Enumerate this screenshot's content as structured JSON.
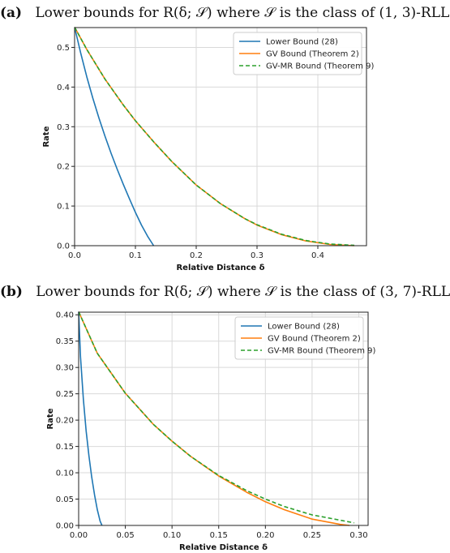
{
  "figure": {
    "panels": [
      {
        "label": "(a)",
        "caption": "Lower bounds for R(δ; 𝒮) where 𝒮 is the class of (1, 3)-RLL"
      },
      {
        "label": "(b)",
        "caption": "Lower bounds for R(δ; 𝒮) where 𝒮 is the class of (3, 7)-RLL"
      }
    ]
  },
  "chart_data": [
    {
      "type": "line",
      "xlabel": "Relative Distance δ",
      "ylabel": "Rate",
      "xlim": [
        0,
        0.48
      ],
      "ylim": [
        0,
        0.55
      ],
      "xticks": [
        "0.0",
        "0.1",
        "0.2",
        "0.3",
        "0.4"
      ],
      "xtick_values": [
        0,
        0.1,
        0.2,
        0.3,
        0.4
      ],
      "yticks": [
        "0.0",
        "0.1",
        "0.2",
        "0.3",
        "0.4",
        "0.5"
      ],
      "ytick_values": [
        0,
        0.1,
        0.2,
        0.3,
        0.4,
        0.5
      ],
      "grid": true,
      "legend_position": "top-right",
      "series": [
        {
          "name": "Lower Bound (28)",
          "color": "#1f77b4",
          "style": "solid",
          "x": [
            0,
            0.01,
            0.02,
            0.03,
            0.04,
            0.05,
            0.06,
            0.07,
            0.08,
            0.09,
            0.1,
            0.11,
            0.12,
            0.13
          ],
          "y": [
            0.551,
            0.486,
            0.426,
            0.372,
            0.322,
            0.276,
            0.233,
            0.193,
            0.155,
            0.119,
            0.084,
            0.052,
            0.024,
            0.0
          ]
        },
        {
          "name": "GV Bound (Theorem 2)",
          "color": "#ff7f0e",
          "style": "solid",
          "x": [
            0,
            0.02,
            0.05,
            0.08,
            0.1,
            0.13,
            0.16,
            0.2,
            0.24,
            0.28,
            0.3,
            0.34,
            0.38,
            0.42,
            0.46
          ],
          "y": [
            0.551,
            0.495,
            0.42,
            0.355,
            0.315,
            0.262,
            0.212,
            0.153,
            0.106,
            0.068,
            0.052,
            0.028,
            0.012,
            0.003,
            0.0
          ]
        },
        {
          "name": "GV-MR Bound (Theorem 9)",
          "color": "#2ca02c",
          "style": "dashed",
          "x": [
            0,
            0.02,
            0.05,
            0.08,
            0.1,
            0.13,
            0.16,
            0.2,
            0.24,
            0.28,
            0.3,
            0.34,
            0.38,
            0.42,
            0.46
          ],
          "y": [
            0.551,
            0.495,
            0.42,
            0.355,
            0.315,
            0.262,
            0.212,
            0.153,
            0.106,
            0.068,
            0.053,
            0.029,
            0.013,
            0.004,
            0.001
          ]
        }
      ]
    },
    {
      "type": "line",
      "xlabel": "Relative Distance δ",
      "ylabel": "Rate",
      "xlim": [
        0,
        0.31
      ],
      "ylim": [
        0,
        0.405
      ],
      "xticks": [
        "0.00",
        "0.05",
        "0.10",
        "0.15",
        "0.20",
        "0.25",
        "0.30"
      ],
      "xtick_values": [
        0,
        0.05,
        0.1,
        0.15,
        0.2,
        0.25,
        0.3
      ],
      "yticks": [
        "0.00",
        "0.05",
        "0.10",
        "0.15",
        "0.20",
        "0.25",
        "0.30",
        "0.35",
        "0.40"
      ],
      "ytick_values": [
        0,
        0.05,
        0.1,
        0.15,
        0.2,
        0.25,
        0.3,
        0.35,
        0.4
      ],
      "grid": true,
      "legend_position": "top-right",
      "series": [
        {
          "name": "Lower Bound (28)",
          "color": "#1f77b4",
          "style": "solid",
          "x": [
            0,
            0.002,
            0.005,
            0.008,
            0.011,
            0.014,
            0.017,
            0.02,
            0.023,
            0.025
          ],
          "y": [
            0.406,
            0.32,
            0.24,
            0.18,
            0.132,
            0.092,
            0.058,
            0.03,
            0.008,
            0.0
          ]
        },
        {
          "name": "GV Bound (Theorem 2)",
          "color": "#ff7f0e",
          "style": "solid",
          "x": [
            0,
            0.02,
            0.05,
            0.08,
            0.1,
            0.12,
            0.15,
            0.18,
            0.2,
            0.22,
            0.25,
            0.28,
            0.29
          ],
          "y": [
            0.406,
            0.327,
            0.251,
            0.192,
            0.16,
            0.131,
            0.094,
            0.063,
            0.045,
            0.03,
            0.012,
            0.002,
            0.0
          ]
        },
        {
          "name": "GV-MR Bound (Theorem 9)",
          "color": "#2ca02c",
          "style": "dashed",
          "x": [
            0,
            0.02,
            0.05,
            0.08,
            0.1,
            0.12,
            0.15,
            0.18,
            0.2,
            0.22,
            0.25,
            0.28,
            0.295
          ],
          "y": [
            0.406,
            0.327,
            0.251,
            0.192,
            0.16,
            0.131,
            0.095,
            0.066,
            0.05,
            0.036,
            0.02,
            0.01,
            0.005
          ]
        }
      ]
    }
  ]
}
